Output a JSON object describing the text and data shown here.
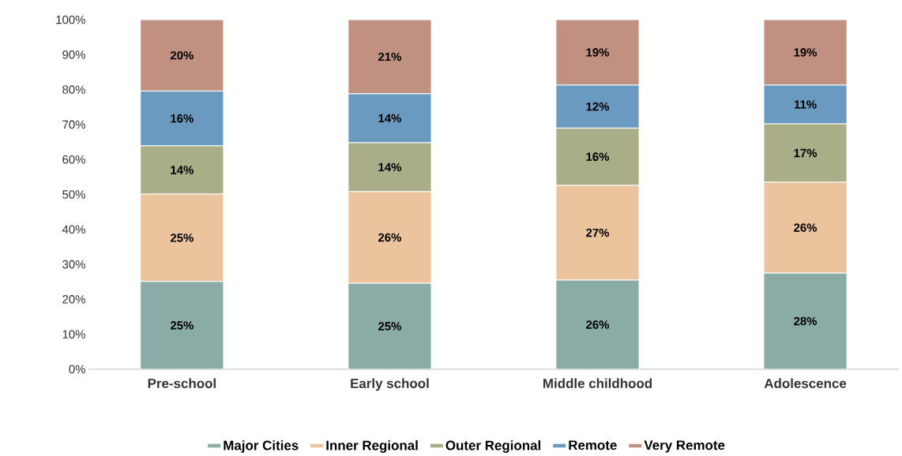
{
  "chart_data": {
    "type": "bar",
    "stacked": true,
    "categories": [
      "Pre-school",
      "Early school",
      "Middle childhood",
      "Adolescence"
    ],
    "series": [
      {
        "name": "Major Cities",
        "color": "#8aaba6",
        "values": [
          25.1,
          24.6,
          25.5,
          27.5
        ],
        "value_labels": [
          "25%",
          "25%",
          "26%",
          "28%"
        ]
      },
      {
        "name": "Inner Regional",
        "color": "#ebc39c",
        "values": [
          25.0,
          26.2,
          27.1,
          26.0
        ],
        "value_labels": [
          "25%",
          "26%",
          "27%",
          "26%"
        ]
      },
      {
        "name": "Outer Regional",
        "color": "#a9ad88",
        "values": [
          13.8,
          14.0,
          16.4,
          16.7
        ],
        "value_labels": [
          "14%",
          "14%",
          "16%",
          "17%"
        ]
      },
      {
        "name": "Remote",
        "color": "#6b9ac0",
        "values": [
          15.7,
          14.0,
          12.3,
          11.1
        ],
        "value_labels": [
          "16%",
          "14%",
          "12%",
          "11%"
        ]
      },
      {
        "name": "Very Remote",
        "color": "#c09080",
        "values": [
          20.4,
          21.2,
          18.7,
          18.7
        ],
        "value_labels": [
          "20%",
          "21%",
          "19%",
          "19%"
        ]
      }
    ],
    "ylim": [
      0,
      100
    ],
    "yticks": [
      {
        "value": 0,
        "label": "0%"
      },
      {
        "value": 10,
        "label": "10%"
      },
      {
        "value": 20,
        "label": "20%"
      },
      {
        "value": 30,
        "label": "30%"
      },
      {
        "value": 40,
        "label": "40%"
      },
      {
        "value": 50,
        "label": "50%"
      },
      {
        "value": 60,
        "label": "60%"
      },
      {
        "value": 70,
        "label": "70%"
      },
      {
        "value": 80,
        "label": "80%"
      },
      {
        "value": 90,
        "label": "90%"
      },
      {
        "value": 100,
        "label": "100%"
      }
    ],
    "legend": "bottom"
  }
}
